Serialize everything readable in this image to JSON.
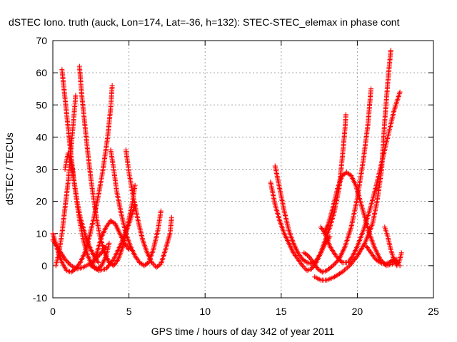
{
  "chart_data": {
    "type": "scatter",
    "title": "dSTEC Iono. truth (auck, Lon=174, Lat=-36, h=132): STEC-STEC_elemax in phase cont",
    "xlabel": "GPS time / hours of day 342 of year 2011",
    "ylabel": "dSTEC  / TECUs",
    "xlim": [
      0,
      25
    ],
    "ylim": [
      -10,
      70
    ],
    "xticks": [
      0,
      5,
      10,
      15,
      20,
      25
    ],
    "yticks": [
      -10,
      0,
      10,
      20,
      30,
      40,
      50,
      60,
      70
    ],
    "grid": true,
    "marker": "+",
    "color": "#ff0000",
    "series": [
      {
        "points": [
          [
            0.0,
            10
          ],
          [
            0.3,
            5
          ],
          [
            0.6,
            1
          ],
          [
            0.9,
            -1.5
          ],
          [
            1.2,
            -2
          ],
          [
            1.5,
            -1
          ],
          [
            1.8,
            1
          ],
          [
            2.1,
            4
          ],
          [
            2.4,
            9
          ],
          [
            2.7,
            15
          ],
          [
            3.0,
            22
          ],
          [
            3.3,
            30
          ],
          [
            3.6,
            40
          ],
          [
            3.8,
            49
          ],
          [
            3.9,
            56
          ]
        ]
      },
      {
        "points": [
          [
            0.6,
            61
          ],
          [
            0.8,
            52
          ],
          [
            1.0,
            43
          ],
          [
            1.2,
            34
          ],
          [
            1.4,
            26
          ],
          [
            1.6,
            19
          ],
          [
            1.8,
            13
          ],
          [
            2.0,
            8
          ],
          [
            2.3,
            3
          ],
          [
            2.6,
            0
          ],
          [
            2.9,
            -1
          ],
          [
            3.2,
            0
          ],
          [
            3.5,
            3
          ],
          [
            3.7,
            7
          ]
        ]
      },
      {
        "points": [
          [
            1.75,
            62
          ],
          [
            1.9,
            53
          ],
          [
            2.1,
            44
          ],
          [
            2.3,
            35
          ],
          [
            2.5,
            27
          ],
          [
            2.7,
            20
          ],
          [
            2.9,
            14
          ],
          [
            3.1,
            9
          ],
          [
            3.4,
            4
          ],
          [
            3.7,
            1
          ],
          [
            4.0,
            0
          ],
          [
            4.3,
            2
          ],
          [
            4.6,
            6
          ],
          [
            4.9,
            12
          ],
          [
            5.2,
            19
          ],
          [
            5.4,
            25
          ]
        ]
      },
      {
        "points": [
          [
            0.2,
            0
          ],
          [
            0.4,
            4
          ],
          [
            0.6,
            10
          ],
          [
            0.8,
            18
          ],
          [
            1.0,
            26
          ],
          [
            1.15,
            34
          ],
          [
            1.3,
            42
          ],
          [
            1.45,
            50
          ],
          [
            1.5,
            53
          ]
        ]
      },
      {
        "points": [
          [
            0.0,
            8
          ],
          [
            0.4,
            5
          ],
          [
            0.8,
            2
          ],
          [
            1.2,
            0
          ],
          [
            1.6,
            -1
          ],
          [
            2.0,
            -0.5
          ],
          [
            2.4,
            0.5
          ],
          [
            2.8,
            2
          ],
          [
            3.2,
            4
          ],
          [
            3.5,
            6
          ]
        ]
      },
      {
        "points": [
          [
            0.8,
            30
          ],
          [
            1.0,
            35
          ],
          [
            1.2,
            32
          ],
          [
            1.4,
            26
          ],
          [
            1.6,
            20
          ],
          [
            1.8,
            15
          ],
          [
            2.1,
            10
          ],
          [
            2.4,
            6
          ],
          [
            2.7,
            3
          ],
          [
            3.0,
            1
          ]
        ]
      },
      {
        "points": [
          [
            2.6,
            0
          ],
          [
            2.9,
            4
          ],
          [
            3.2,
            9
          ],
          [
            3.5,
            12
          ],
          [
            3.8,
            14
          ],
          [
            4.1,
            13
          ],
          [
            4.4,
            10
          ],
          [
            4.7,
            7
          ],
          [
            5.0,
            5
          ]
        ]
      },
      {
        "points": [
          [
            3.8,
            36
          ],
          [
            4.0,
            30
          ],
          [
            4.2,
            23
          ],
          [
            4.5,
            16
          ],
          [
            4.8,
            10
          ],
          [
            5.1,
            6
          ],
          [
            5.4,
            3
          ],
          [
            5.7,
            1
          ],
          [
            6.0,
            0
          ],
          [
            6.3,
            1
          ],
          [
            6.6,
            5
          ],
          [
            6.9,
            11
          ],
          [
            7.1,
            17
          ]
        ]
      },
      {
        "points": [
          [
            4.8,
            36
          ],
          [
            5.0,
            29
          ],
          [
            5.3,
            21
          ],
          [
            5.6,
            14
          ],
          [
            5.9,
            8
          ],
          [
            6.2,
            4
          ],
          [
            6.5,
            1
          ],
          [
            6.8,
            -0.5
          ],
          [
            7.1,
            0.5
          ],
          [
            7.4,
            5
          ],
          [
            7.7,
            10
          ],
          [
            7.8,
            15
          ]
        ]
      },
      {
        "points": [
          [
            2.5,
            0
          ],
          [
            3.0,
            -1.5
          ],
          [
            3.5,
            -1
          ],
          [
            4.0,
            2
          ],
          [
            4.5,
            7
          ],
          [
            5.0,
            13
          ],
          [
            5.4,
            19
          ]
        ]
      },
      {
        "points": [
          [
            14.3,
            26
          ],
          [
            14.6,
            19
          ],
          [
            14.9,
            14
          ],
          [
            15.2,
            10
          ],
          [
            15.5,
            7
          ],
          [
            15.8,
            4
          ],
          [
            16.1,
            2
          ],
          [
            16.4,
            0
          ],
          [
            16.7,
            -1.5
          ],
          [
            17.0,
            -1
          ],
          [
            17.3,
            1
          ],
          [
            17.6,
            4
          ],
          [
            17.9,
            7
          ],
          [
            18.2,
            9
          ]
        ]
      },
      {
        "points": [
          [
            14.6,
            31
          ],
          [
            14.9,
            24
          ],
          [
            15.2,
            17
          ],
          [
            15.5,
            11
          ],
          [
            15.8,
            7
          ],
          [
            16.1,
            4
          ],
          [
            16.4,
            2
          ],
          [
            16.7,
            1
          ],
          [
            17.0,
            0.5
          ],
          [
            17.3,
            1.5
          ],
          [
            17.6,
            4
          ],
          [
            17.9,
            8
          ],
          [
            18.2,
            12
          ],
          [
            18.5,
            17
          ],
          [
            18.8,
            24
          ],
          [
            19.0,
            33
          ],
          [
            19.2,
            43
          ],
          [
            19.25,
            47
          ]
        ]
      },
      {
        "points": [
          [
            16.5,
            4
          ],
          [
            16.8,
            3
          ],
          [
            17.1,
            1
          ],
          [
            17.4,
            -1
          ],
          [
            17.7,
            -2
          ],
          [
            18.0,
            -1.5
          ],
          [
            18.4,
            0
          ],
          [
            18.8,
            2
          ],
          [
            19.2,
            6
          ],
          [
            19.6,
            12
          ],
          [
            20.0,
            21
          ],
          [
            20.4,
            33
          ],
          [
            20.7,
            44
          ],
          [
            20.9,
            55
          ]
        ]
      },
      {
        "points": [
          [
            17.2,
            -3.5
          ],
          [
            17.6,
            -4.5
          ],
          [
            18.0,
            -4.5
          ],
          [
            18.5,
            -3.5
          ],
          [
            19.0,
            -2
          ],
          [
            19.5,
            0
          ],
          [
            20.0,
            3
          ],
          [
            20.5,
            7
          ],
          [
            21.0,
            13
          ],
          [
            21.3,
            20
          ],
          [
            21.6,
            30
          ],
          [
            21.8,
            45
          ],
          [
            22.0,
            57
          ],
          [
            22.2,
            67
          ]
        ]
      },
      {
        "points": [
          [
            17.6,
            12
          ],
          [
            17.9,
            10
          ],
          [
            18.2,
            6
          ],
          [
            18.6,
            3
          ],
          [
            19.0,
            1
          ],
          [
            19.4,
            1
          ],
          [
            19.7,
            3
          ],
          [
            20.0,
            6
          ],
          [
            20.4,
            11
          ],
          [
            20.8,
            17
          ],
          [
            21.2,
            24
          ],
          [
            21.6,
            32
          ],
          [
            22.0,
            40
          ],
          [
            22.4,
            48
          ],
          [
            22.8,
            54
          ]
        ]
      },
      {
        "points": [
          [
            17.8,
            10
          ],
          [
            18.1,
            13
          ],
          [
            18.4,
            18
          ],
          [
            18.7,
            24
          ],
          [
            19.0,
            28
          ],
          [
            19.3,
            29
          ],
          [
            19.6,
            28
          ],
          [
            19.9,
            25
          ],
          [
            20.2,
            20
          ],
          [
            20.5,
            15
          ],
          [
            20.8,
            10
          ],
          [
            21.1,
            6
          ],
          [
            21.5,
            2
          ],
          [
            21.9,
            0
          ],
          [
            22.3,
            0.5
          ],
          [
            22.6,
            2
          ]
        ]
      },
      {
        "points": [
          [
            21.8,
            12
          ],
          [
            22.0,
            9
          ],
          [
            22.2,
            5
          ],
          [
            22.4,
            2
          ],
          [
            22.6,
            0
          ],
          [
            22.7,
            0.5
          ],
          [
            22.8,
            2
          ],
          [
            22.9,
            4
          ]
        ]
      },
      {
        "points": [
          [
            20.6,
            6
          ],
          [
            20.9,
            4
          ],
          [
            21.2,
            2
          ],
          [
            21.5,
            1
          ],
          [
            21.8,
            0.5
          ],
          [
            22.1,
            1
          ],
          [
            22.4,
            2
          ],
          [
            22.7,
            0.5
          ],
          [
            22.8,
            0
          ]
        ]
      }
    ]
  }
}
